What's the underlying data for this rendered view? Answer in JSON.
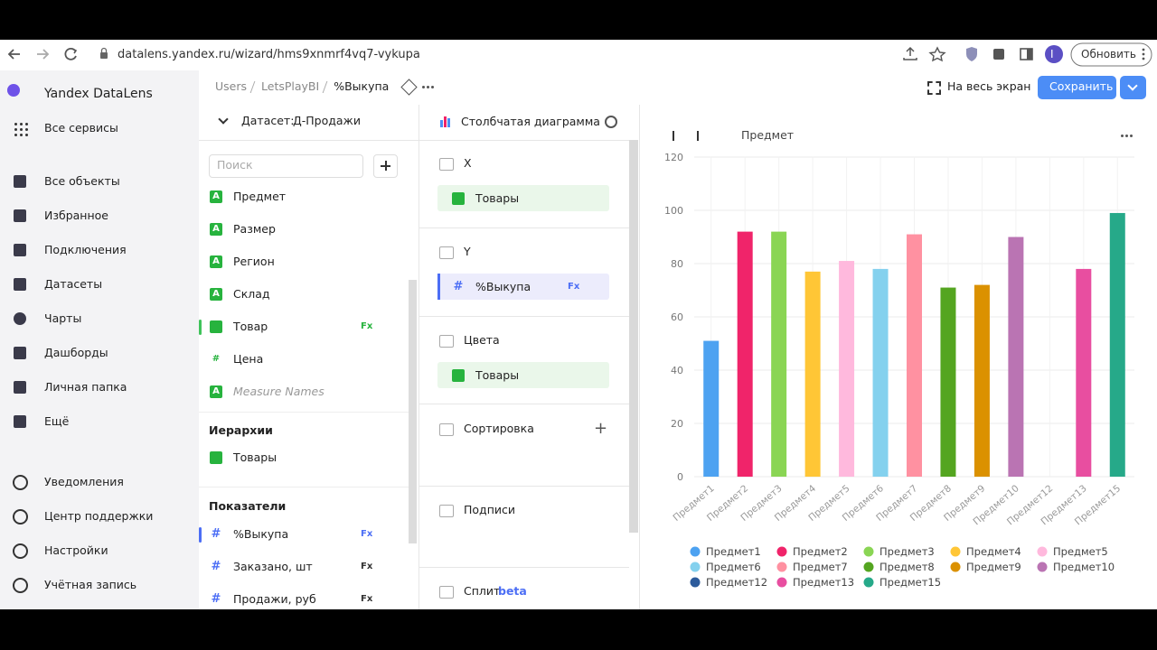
{
  "browser": {
    "url": "datalens.yandex.ru/wizard/hms9xnmrf4vq7-vykupa",
    "update_button": "Обновить",
    "profile": "I"
  },
  "sidebar": {
    "brand": "Yandex DataLens",
    "services": "Все сервисы",
    "nav": [
      "Все объекты",
      "Избранное",
      "Подключения",
      "Датасеты",
      "Чарты",
      "Дашборды",
      "Личная папка",
      "Ещё"
    ],
    "bottom": [
      "Уведомления",
      "Центр поддержки",
      "Настройки",
      "Учётная запись"
    ]
  },
  "header": {
    "breadcrumbs": [
      "Users",
      "LetsPlayBI",
      "%Выкупа"
    ],
    "fullscreen": "На весь экран",
    "save": "Сохранить"
  },
  "dataset": {
    "label": "Датасет:",
    "name": "Д-Продажи",
    "search_placeholder": "Поиск",
    "dimensions": [
      {
        "icon": "A",
        "name": "Предмет"
      },
      {
        "icon": "A",
        "name": "Размер"
      },
      {
        "icon": "A",
        "name": "Регион"
      },
      {
        "icon": "A",
        "name": "Склад"
      },
      {
        "name": "Товар",
        "formula": "Fx",
        "selected": true
      },
      {
        "icon": "#",
        "name": "Цена"
      },
      {
        "icon": "A",
        "name": "Measure Names",
        "italic": true
      }
    ],
    "hierarchies_title": "Иерархии",
    "hierarchies": [
      "Товары"
    ],
    "measures_title": "Показатели",
    "measures": [
      {
        "icon": "#",
        "name": "%Выкупа",
        "formula": "Fx",
        "selected": true
      },
      {
        "icon": "#",
        "name": "Заказано, шт",
        "formula": "Fx"
      },
      {
        "icon": "#",
        "name": "Продажи, руб",
        "formula": "Fx"
      }
    ]
  },
  "wizard": {
    "chart_type": "Столбчатая диаграмма",
    "sections": [
      {
        "title": "X",
        "fields": [
          {
            "name": "Товары"
          }
        ]
      },
      {
        "title": "Y",
        "fields": [
          {
            "icon": "#",
            "name": "%Выкупа",
            "formula": "Fx"
          }
        ]
      },
      {
        "title": "Цвета",
        "fields": [
          {
            "name": "Товары"
          }
        ]
      },
      {
        "title": "Сортировка",
        "add": "+"
      },
      {
        "title": "Подписи"
      },
      {
        "title": "Сплит",
        "badge": "beta"
      }
    ]
  },
  "chart_data": {
    "type": "bar",
    "breadcrumb": "Предмет",
    "categories": [
      "Предмет1",
      "Предмет2",
      "Предмет3",
      "Предмет4",
      "Предмет5",
      "Предмет6",
      "Предмет7",
      "Предмет8",
      "Предмет9",
      "Предмет10",
      "Предмет12",
      "Предмет13",
      "Предмет15"
    ],
    "values": [
      51,
      92,
      92,
      77,
      81,
      78,
      91,
      71,
      72,
      90,
      null,
      78,
      99
    ],
    "colors": [
      "#4da2f1",
      "#f0246a",
      "#8ad554",
      "#ffc636",
      "#ffb9dd",
      "#84d1ee",
      "#ff91a1",
      "#54a520",
      "#db9100",
      "#ba74b3",
      "#2c5b9b",
      "#e84ea0",
      "#26a989"
    ],
    "ylim": [
      0,
      120
    ],
    "yticks": [
      0,
      20,
      40,
      60,
      80,
      100,
      120
    ],
    "grid": true
  }
}
